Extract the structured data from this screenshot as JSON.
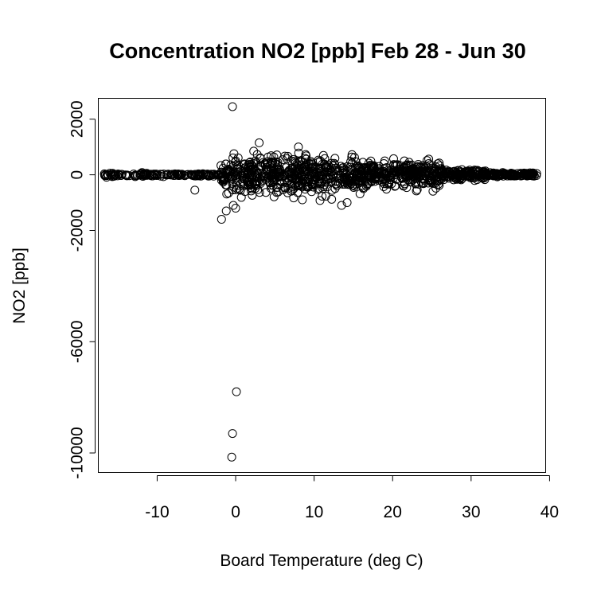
{
  "chart_data": {
    "type": "scatter",
    "title": "Concentration NO2 [ppb] Feb 28 - Jun 30",
    "xlabel": "Board Temperature (deg C)",
    "ylabel": "NO2 [ppb]",
    "xlim": [
      -17.5,
      39.5
    ],
    "ylim": [
      -10700,
      2750
    ],
    "x_ticks": [
      -10,
      0,
      10,
      20,
      30,
      40
    ],
    "y_ticks": [
      2000,
      0,
      -2000,
      -6000,
      -10000
    ],
    "point_style": "open-circle",
    "grid": false,
    "legend": "none",
    "outliers": [
      {
        "x": -0.4,
        "y": 2450
      },
      {
        "x": 0.1,
        "y": -7800
      },
      {
        "x": -0.4,
        "y": -9300
      },
      {
        "x": -0.5,
        "y": -10150
      },
      {
        "x": 3.0,
        "y": 1150
      },
      {
        "x": 8.0,
        "y": 1000
      },
      {
        "x": 2.3,
        "y": 850
      },
      {
        "x": -1.2,
        "y": -1300
      },
      {
        "x": -1.8,
        "y": -1600
      },
      {
        "x": -0.3,
        "y": -1100
      },
      {
        "x": 0.0,
        "y": -1200
      },
      {
        "x": -5.2,
        "y": -550
      },
      {
        "x": 8.5,
        "y": -900
      },
      {
        "x": 13.5,
        "y": -1100
      },
      {
        "x": 14.2,
        "y": -1000
      },
      {
        "x": 21.5,
        "y": 500
      },
      {
        "x": 19.0,
        "y": 500
      }
    ],
    "dense_bands": [
      {
        "x_from": -16.8,
        "x_to": -2.0,
        "y_spread": 60,
        "count": 160
      },
      {
        "x_from": -2.0,
        "x_to": 3.0,
        "y_spread": 600,
        "count": 160
      },
      {
        "x_from": 3.0,
        "x_to": 16.0,
        "y_spread": 650,
        "count": 420
      },
      {
        "x_from": 16.0,
        "x_to": 26.0,
        "y_spread": 450,
        "count": 320
      },
      {
        "x_from": 26.0,
        "x_to": 32.0,
        "y_spread": 180,
        "count": 160
      },
      {
        "x_from": 32.0,
        "x_to": 38.4,
        "y_spread": 60,
        "count": 140
      }
    ]
  }
}
